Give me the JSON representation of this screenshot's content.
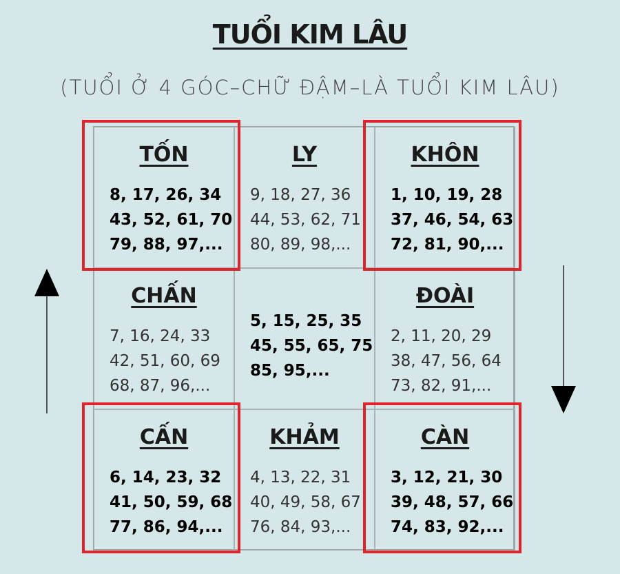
{
  "title": "TUỔI KIM LÂU",
  "subtitle": "(TUỔI Ở 4 GÓC–CHỮ ĐẬM–LÀ TUỔI KIM LÂU)",
  "cells": [
    {
      "name": "TỐN",
      "lines": [
        "8, 17, 26, 34",
        "43, 52, 61, 70",
        "79, 88, 97,..."
      ],
      "bold": true,
      "highlighted": true
    },
    {
      "name": "LY",
      "lines": [
        "9, 18, 27, 36",
        "44, 53, 62, 71",
        "80, 89, 98,..."
      ],
      "bold": false,
      "highlighted": false
    },
    {
      "name": "KHÔN",
      "lines": [
        "1, 10, 19, 28",
        "37, 46, 54, 63",
        "72, 81, 90,..."
      ],
      "bold": true,
      "highlighted": true
    },
    {
      "name": "CHẤN",
      "lines": [
        "7, 16, 24, 33",
        "42, 51, 60, 69",
        "68, 87, 96,..."
      ],
      "bold": false,
      "highlighted": false
    },
    {
      "lines": [
        "5, 15, 25, 35",
        "45, 55, 65, 75",
        "85, 95,..."
      ],
      "bold": true,
      "highlighted": false
    },
    {
      "name": "ĐOÀI",
      "lines": [
        "2, 11, 20, 29",
        "38, 47, 56, 64",
        "73, 82, 91,..."
      ],
      "bold": false,
      "highlighted": false
    },
    {
      "name": "CẤN",
      "lines": [
        "6, 14, 23, 32",
        "41, 50, 59, 68",
        "77, 86, 94,..."
      ],
      "bold": true,
      "highlighted": true
    },
    {
      "name": "KHẢM",
      "lines": [
        "4, 13, 22, 31",
        "40, 49, 58, 67",
        "76, 84, 93,..."
      ],
      "bold": false,
      "highlighted": false
    },
    {
      "name": "CÀN",
      "lines": [
        "3, 12, 21, 30",
        "39, 48, 57, 66",
        "74, 83, 92,..."
      ],
      "bold": true,
      "highlighted": true
    }
  ]
}
